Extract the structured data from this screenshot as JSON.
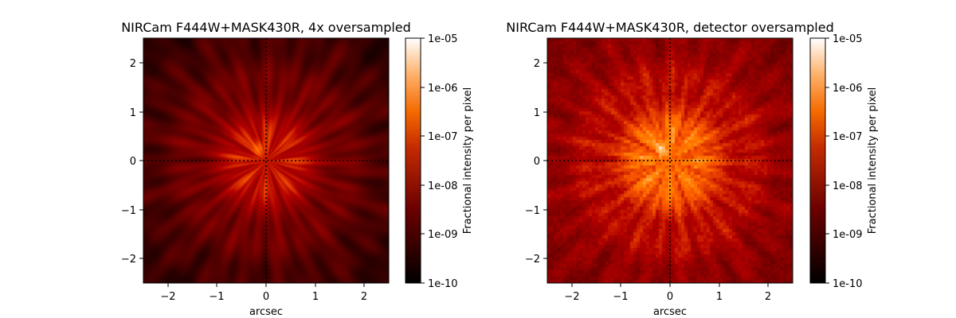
{
  "chart_data": [
    {
      "type": "heatmap",
      "title": "NIRCam F444W+MASK430R, 4x oversampled",
      "xlabel": "arcsec",
      "ylabel": "",
      "xlim": [
        -2.5,
        2.5
      ],
      "ylim": [
        -2.5,
        2.5
      ],
      "xticks": [
        -2,
        -1,
        0,
        1,
        2
      ],
      "yticks": [
        -2,
        -1,
        0,
        1,
        2
      ],
      "xtick_labels": [
        "−2",
        "−1",
        "0",
        "1",
        "2"
      ],
      "ytick_labels": [
        "−2",
        "−1",
        "0",
        "1",
        "2"
      ],
      "crosshair": {
        "x": 0,
        "y": 0,
        "style": "dotted"
      },
      "colormap": "gist_heat",
      "color_scale": "log",
      "colorbar": {
        "label": "Fractional intensity per pixel",
        "range": [
          1e-10,
          1e-05
        ],
        "ticks": [
          "1e-10",
          "1e-09",
          "1e-08",
          "1e-07",
          "1e-06",
          "1e-05"
        ]
      },
      "sampling": "4x oversampled",
      "features": {
        "peak_log_intensity": -6.5,
        "background_log_intensity": -8.8
      }
    },
    {
      "type": "heatmap",
      "title": "NIRCam F444W+MASK430R, detector oversampled",
      "xlabel": "arcsec",
      "ylabel": "",
      "xlim": [
        -2.5,
        2.5
      ],
      "ylim": [
        -2.5,
        2.5
      ],
      "xticks": [
        -2,
        -1,
        0,
        1,
        2
      ],
      "yticks": [
        -2,
        -1,
        0,
        1,
        2
      ],
      "xtick_labels": [
        "−2",
        "−1",
        "0",
        "1",
        "2"
      ],
      "ytick_labels": [
        "−2",
        "−1",
        "0",
        "1",
        "2"
      ],
      "crosshair": {
        "x": 0,
        "y": 0,
        "style": "dotted"
      },
      "colormap": "gist_heat",
      "color_scale": "log",
      "colorbar": {
        "label": "Fractional intensity per pixel",
        "range": [
          1e-10,
          1e-05
        ],
        "ticks": [
          "1e-10",
          "1e-09",
          "1e-08",
          "1e-07",
          "1e-06",
          "1e-05"
        ]
      },
      "sampling": "detector oversampled",
      "features": {
        "peak_log_intensity": -5.6,
        "background_log_intensity": -7.8
      }
    }
  ]
}
